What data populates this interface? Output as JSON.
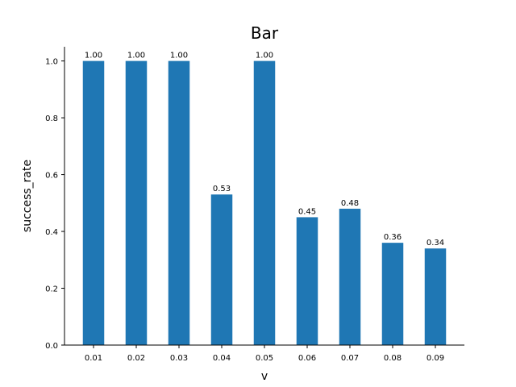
{
  "chart_data": {
    "type": "bar",
    "title": "Bar",
    "xlabel": "v",
    "ylabel": "success_rate",
    "categories": [
      "0.01",
      "0.02",
      "0.03",
      "0.04",
      "0.05",
      "0.06",
      "0.07",
      "0.08",
      "0.09"
    ],
    "values": [
      1.0,
      1.0,
      1.0,
      0.53,
      1.0,
      0.45,
      0.48,
      0.36,
      0.34
    ],
    "data_labels": [
      "1.00",
      "1.00",
      "1.00",
      "0.53",
      "1.00",
      "0.45",
      "0.48",
      "0.36",
      "0.34"
    ],
    "yticks": [
      "0.0",
      "0.2",
      "0.4",
      "0.6",
      "0.8",
      "1.0"
    ],
    "ylim": [
      0,
      1.05
    ],
    "grid": false,
    "bar_color": "#1f77b4"
  }
}
